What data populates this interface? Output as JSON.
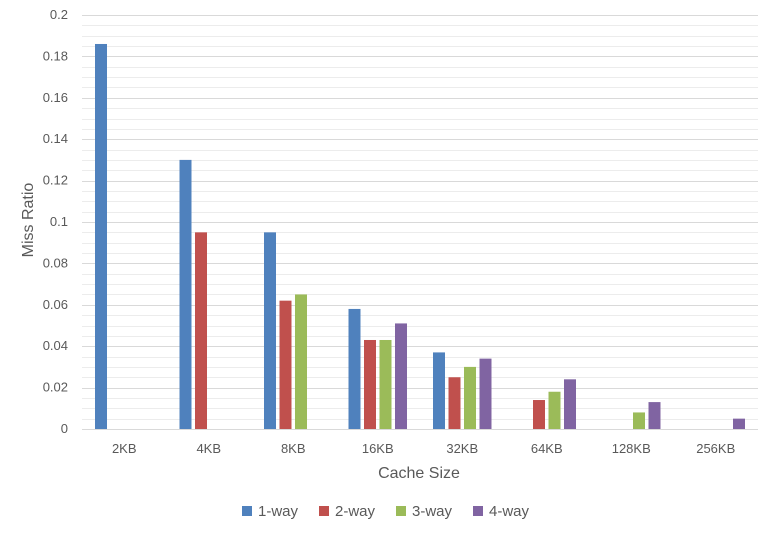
{
  "chart_data": {
    "type": "bar",
    "title": "",
    "xlabel": "Cache Size",
    "ylabel": "Miss Ratio",
    "categories": [
      "2KB",
      "4KB",
      "8KB",
      "16KB",
      "32KB",
      "64KB",
      "128KB",
      "256KB"
    ],
    "ylim": [
      0,
      0.2
    ],
    "yticks": [
      "0",
      "0.02",
      "0.04",
      "0.06",
      "0.08",
      "0.1",
      "0.12",
      "0.14",
      "0.16",
      "0.18",
      "0.2"
    ],
    "ytick_values": [
      0,
      0.02,
      0.04,
      0.06,
      0.08,
      0.1,
      0.12,
      0.14,
      0.16,
      0.18,
      0.2
    ],
    "minor_gridline_step": 0.005,
    "grid": true,
    "legend_position": "bottom",
    "series": [
      {
        "name": "1-way",
        "color": "#4f81bd",
        "values": [
          0.186,
          0.13,
          0.095,
          0.058,
          0.037,
          null,
          null,
          null
        ]
      },
      {
        "name": "2-way",
        "color": "#c0504d",
        "values": [
          null,
          0.095,
          0.062,
          0.043,
          0.025,
          0.014,
          null,
          null
        ]
      },
      {
        "name": "3-way",
        "color": "#9bbb59",
        "values": [
          null,
          null,
          0.065,
          0.043,
          0.03,
          0.018,
          0.008,
          null
        ]
      },
      {
        "name": "4-way",
        "color": "#8064a2",
        "values": [
          null,
          null,
          null,
          0.051,
          0.034,
          0.024,
          0.013,
          0.005
        ]
      }
    ]
  }
}
